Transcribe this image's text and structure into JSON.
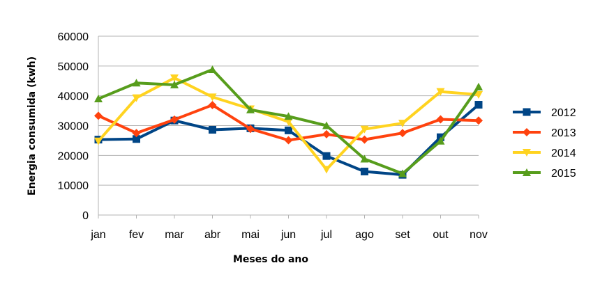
{
  "chart_data": {
    "type": "line",
    "categories": [
      "jan",
      "fev",
      "mar",
      "abr",
      "mai",
      "jun",
      "jul",
      "ago",
      "set",
      "out",
      "nov"
    ],
    "series": [
      {
        "name": "2012",
        "color": "#004586",
        "marker": "square",
        "values": [
          25300,
          25500,
          31700,
          28600,
          29100,
          28400,
          19800,
          14600,
          13500,
          26100,
          37000
        ]
      },
      {
        "name": "2013",
        "color": "#ff420e",
        "marker": "diamond",
        "values": [
          33300,
          27500,
          32000,
          36900,
          28900,
          25100,
          27100,
          25300,
          27500,
          32100,
          31700
        ]
      },
      {
        "name": "2014",
        "color": "#ffd320",
        "marker": "triangle-down",
        "values": [
          24800,
          39300,
          46000,
          39600,
          35600,
          31300,
          15300,
          28800,
          30800,
          41400,
          40400
        ]
      },
      {
        "name": "2015",
        "color": "#579d1c",
        "marker": "triangle-up",
        "values": [
          39000,
          44300,
          43700,
          48800,
          35300,
          33100,
          30000,
          18800,
          13900,
          24800,
          43000
        ]
      }
    ],
    "xlabel": "Meses do ano",
    "ylabel": "Energia consumida (kwh)",
    "ylim": [
      0,
      60000
    ],
    "yticks": [
      0,
      10000,
      20000,
      30000,
      40000,
      50000,
      60000
    ],
    "grid": true,
    "legend": "right"
  }
}
